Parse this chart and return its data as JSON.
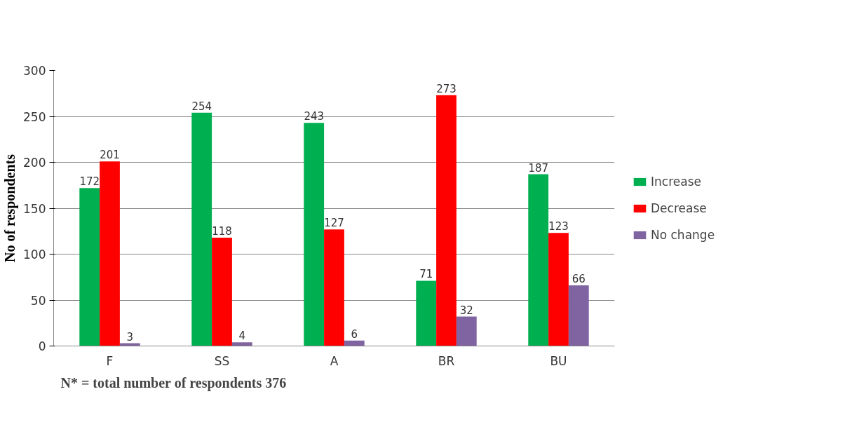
{
  "chart_data": {
    "type": "bar",
    "categories": [
      "F",
      "SS",
      "A",
      "BR",
      "BU"
    ],
    "series": [
      {
        "name": "Increase",
        "color": "#00b050",
        "values": [
          172,
          254,
          243,
          71,
          187
        ]
      },
      {
        "name": "Decrease",
        "color": "#ff0000",
        "values": [
          201,
          118,
          127,
          273,
          123
        ]
      },
      {
        "name": "No change",
        "color": "#8064a2",
        "values": [
          3,
          4,
          6,
          32,
          66
        ]
      }
    ],
    "ylabel": "No of respondents",
    "ylim": [
      0,
      300
    ],
    "yticks": [
      0,
      50,
      100,
      150,
      200,
      250,
      300
    ],
    "grid": "y",
    "legend": "right",
    "data_labels": true,
    "annotations": [
      "N* =  total number of respondents 376"
    ]
  }
}
